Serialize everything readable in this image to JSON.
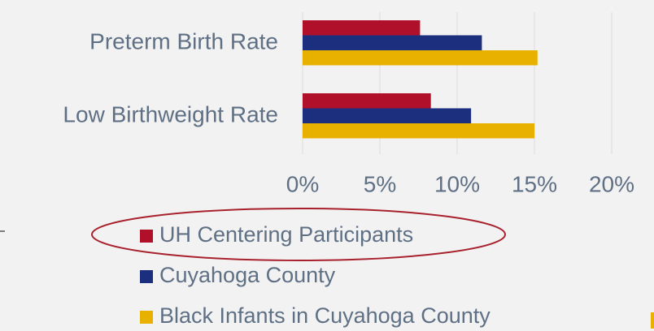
{
  "chart_data": {
    "type": "barh",
    "categories": [
      "Preterm Birth Rate",
      "Low Birthweight Rate"
    ],
    "series": [
      {
        "name": "UH Centering Participants",
        "color": "#b0102a",
        "values": [
          7.6,
          8.3
        ]
      },
      {
        "name": "Cuyahoga County",
        "color": "#1c2f7e",
        "values": [
          11.6,
          10.9
        ]
      },
      {
        "name": "Black Infants in Cuyahoga County",
        "color": "#e8b100",
        "values": [
          15.2,
          15.0
        ]
      }
    ],
    "xlim": [
      0,
      20
    ],
    "xticks": [
      {
        "value": 0,
        "label": "0%"
      },
      {
        "value": 5,
        "label": "5%"
      },
      {
        "value": 10,
        "label": "10%"
      },
      {
        "value": 15,
        "label": "15%"
      },
      {
        "value": 20,
        "label": "20%"
      }
    ],
    "grid": true
  }
}
